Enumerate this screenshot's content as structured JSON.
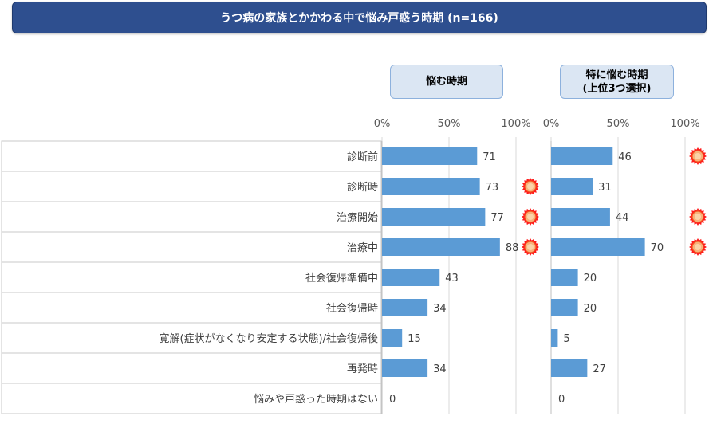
{
  "title": "うつ病の家族とかかわる中で悩み戸惑う時期 (n=166)",
  "colors": {
    "bar": "#5b9bd5",
    "title_bg": "#2e4f8f",
    "header_bg": "#dbe6f3",
    "marker": "#f4511e"
  },
  "chart_data": [
    {
      "type": "bar",
      "orientation": "horizontal",
      "title": "悩む時期",
      "categories": [
        "診断前",
        "診断時",
        "治療開始",
        "治療中",
        "社会復帰準備中",
        "社会復帰時",
        "寛解(症状がなくなり安定する状態)/社会復帰後",
        "再発時",
        "悩みや戸惑った時期はない"
      ],
      "values": [
        71,
        73,
        77,
        88,
        43,
        34,
        15,
        34,
        0
      ],
      "xlim": [
        0,
        100
      ],
      "ticks": [
        "0%",
        "50%",
        "100%"
      ],
      "highlighted": [
        false,
        true,
        true,
        true,
        false,
        false,
        false,
        false,
        false
      ]
    },
    {
      "type": "bar",
      "orientation": "horizontal",
      "title": "特に悩む時期 (上位3つ選択)",
      "title_lines": [
        "特に悩む時期",
        "(上位3つ選択)"
      ],
      "categories": [
        "診断前",
        "診断時",
        "治療開始",
        "治療中",
        "社会復帰準備中",
        "社会復帰時",
        "寛解(症状がなくなり安定する状態)/社会復帰後",
        "再発時",
        "悩みや戸惑った時期はない"
      ],
      "values": [
        46,
        31,
        44,
        70,
        20,
        20,
        5,
        27,
        0
      ],
      "xlim": [
        0,
        100
      ],
      "ticks": [
        "0%",
        "50%",
        "100%"
      ],
      "highlighted": [
        true,
        false,
        true,
        true,
        false,
        false,
        false,
        false,
        false
      ]
    }
  ]
}
